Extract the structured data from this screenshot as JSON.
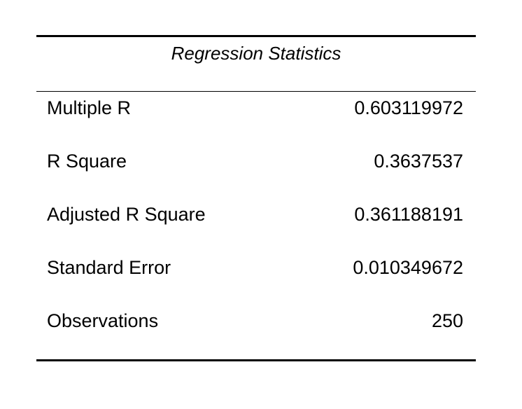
{
  "table": {
    "title": "Regression Statistics",
    "rows": [
      {
        "label": "Multiple R",
        "value": "0.603119972"
      },
      {
        "label": "R Square",
        "value": "0.3637537"
      },
      {
        "label": "Adjusted R Square",
        "value": "0.361188191"
      },
      {
        "label": "Standard Error",
        "value": "0.010349672"
      },
      {
        "label": "Observations",
        "value": "250"
      }
    ]
  }
}
